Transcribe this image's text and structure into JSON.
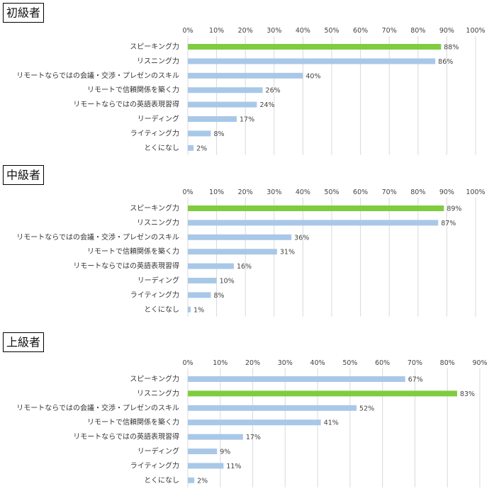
{
  "colors": {
    "bar": "#a9c8e8",
    "highlight": "#7fcc3f"
  },
  "chart_data": [
    {
      "type": "bar",
      "orientation": "horizontal",
      "title": "初級者",
      "categories": [
        "スピーキング力",
        "リスニング力",
        "リモートならではの会議・交渉・プレゼンのスキル",
        "リモートで信頼関係を築く力",
        "リモートならではの英語表現習得",
        "リーディング",
        "ライティング力",
        "とくになし"
      ],
      "values": [
        88,
        86,
        40,
        26,
        24,
        17,
        8,
        2
      ],
      "value_labels": [
        "88%",
        "86%",
        "40%",
        "26%",
        "24%",
        "17%",
        "8%",
        "2%"
      ],
      "highlight_index": 0,
      "xlim": [
        0,
        100
      ],
      "ticks": [
        "0%",
        "10%",
        "20%",
        "30%",
        "40%",
        "50%",
        "60%",
        "70%",
        "80%",
        "90%",
        "100%"
      ],
      "grid": true
    },
    {
      "type": "bar",
      "orientation": "horizontal",
      "title": "中級者",
      "categories": [
        "スピーキング力",
        "リスニング力",
        "リモートならではの会議・交渉・プレゼンのスキル",
        "リモートで信頼関係を築く力",
        "リモートならではの英語表現習得",
        "リーディング",
        "ライティング力",
        "とくになし"
      ],
      "values": [
        89,
        87,
        36,
        31,
        16,
        10,
        8,
        1
      ],
      "value_labels": [
        "89%",
        "87%",
        "36%",
        "31%",
        "16%",
        "10%",
        "8%",
        "1%"
      ],
      "highlight_index": 0,
      "xlim": [
        0,
        100
      ],
      "ticks": [
        "0%",
        "10%",
        "20%",
        "30%",
        "40%",
        "50%",
        "60%",
        "70%",
        "80%",
        "90%",
        "100%"
      ],
      "grid": true
    },
    {
      "type": "bar",
      "orientation": "horizontal",
      "title": "上級者",
      "categories": [
        "スピーキング力",
        "リスニング力",
        "リモートならではの会議・交渉・プレゼンのスキル",
        "リモートで信頼関係を築く力",
        "リモートならではの英語表現習得",
        "リーディング",
        "ライティング力",
        "とくになし"
      ],
      "values": [
        67,
        83,
        52,
        41,
        17,
        9,
        11,
        2
      ],
      "value_labels": [
        "67%",
        "83%",
        "52%",
        "41%",
        "17%",
        "9%",
        "11%",
        "2%"
      ],
      "highlight_index": 1,
      "xlim": [
        0,
        90
      ],
      "ticks": [
        "0%",
        "10%",
        "20%",
        "30%",
        "40%",
        "50%",
        "60%",
        "70%",
        "80%",
        "90%"
      ],
      "grid": true
    }
  ]
}
